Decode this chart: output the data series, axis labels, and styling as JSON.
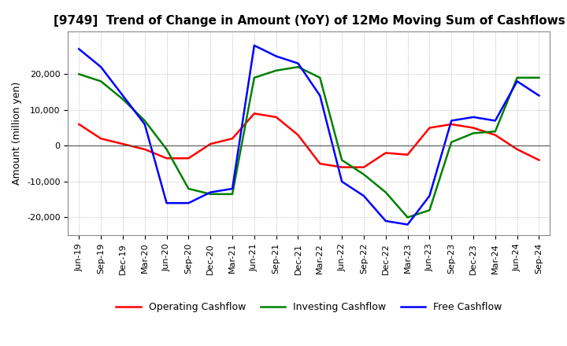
{
  "title": "[9749]  Trend of Change in Amount (YoY) of 12Mo Moving Sum of Cashflows",
  "ylabel": "Amount (million yen)",
  "xlabels": [
    "Jun-19",
    "Sep-19",
    "Dec-19",
    "Mar-20",
    "Jun-20",
    "Sep-20",
    "Dec-20",
    "Mar-21",
    "Jun-21",
    "Sep-21",
    "Dec-21",
    "Mar-22",
    "Jun-22",
    "Sep-22",
    "Dec-22",
    "Mar-23",
    "Jun-23",
    "Sep-23",
    "Dec-23",
    "Mar-24",
    "Jun-24",
    "Sep-24"
  ],
  "operating": [
    6000,
    2000,
    500,
    -1000,
    -3500,
    -3500,
    500,
    2000,
    9000,
    8000,
    3000,
    -5000,
    -6000,
    -6000,
    -2000,
    -2500,
    5000,
    6000,
    5000,
    3000,
    -1000,
    -4000
  ],
  "investing": [
    20000,
    18000,
    13000,
    7000,
    -1000,
    -12000,
    -13500,
    -13500,
    19000,
    21000,
    22000,
    19000,
    -4000,
    -8000,
    -13000,
    -20000,
    -18000,
    1000,
    3500,
    4000,
    19000,
    19000
  ],
  "free": [
    27000,
    22000,
    14000,
    6000,
    -16000,
    -16000,
    -13000,
    -12000,
    28000,
    25000,
    23000,
    14000,
    -10000,
    -14000,
    -21000,
    -22000,
    -14000,
    7000,
    8000,
    7000,
    18000,
    14000
  ],
  "ylim": [
    -25000,
    32000
  ],
  "yticks": [
    -20000,
    -10000,
    0,
    10000,
    20000
  ],
  "operating_color": "#ff0000",
  "investing_color": "#008000",
  "free_color": "#0000ff",
  "grid_color": "#aaaaaa",
  "background_color": "#ffffff",
  "title_fontsize": 11,
  "axis_fontsize": 8,
  "ylabel_fontsize": 9,
  "legend_fontsize": 9
}
